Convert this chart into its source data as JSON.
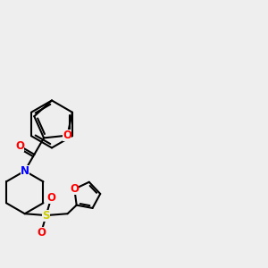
{
  "background_color": "#eeeeee",
  "line_color": "#000000",
  "bond_width": 1.5,
  "figsize": [
    3.0,
    3.0
  ],
  "dpi": 100,
  "atom_colors": {
    "O": "#ff0000",
    "N": "#0000ff",
    "S": "#cccc00",
    "C": "#000000"
  },
  "font_size": 8.5
}
